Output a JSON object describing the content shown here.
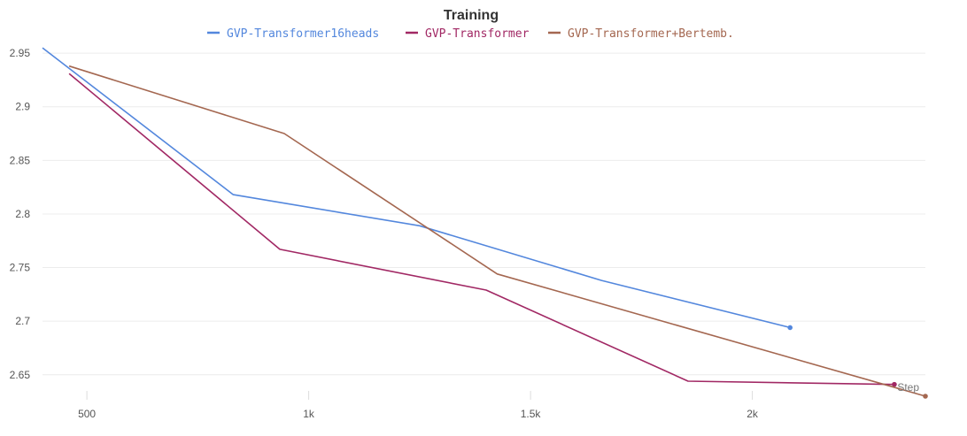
{
  "chart_data": {
    "type": "line",
    "title": "Training",
    "xlabel": "Step",
    "ylabel": "",
    "xlim": [
      400,
      2390
    ],
    "ylim": [
      2.63,
      2.96
    ],
    "grid": true,
    "legend_position": "top-center",
    "x_ticks": [
      {
        "value": 500,
        "label": "500"
      },
      {
        "value": 1000,
        "label": "1k"
      },
      {
        "value": 1500,
        "label": "1.5k"
      },
      {
        "value": 2000,
        "label": "2k"
      }
    ],
    "y_ticks": [
      {
        "value": 2.65,
        "label": "2.65"
      },
      {
        "value": 2.7,
        "label": "2.7"
      },
      {
        "value": 2.75,
        "label": "2.75"
      },
      {
        "value": 2.8,
        "label": "2.8"
      },
      {
        "value": 2.85,
        "label": "2.85"
      },
      {
        "value": 2.9,
        "label": "2.9"
      },
      {
        "value": 2.95,
        "label": "2.95"
      }
    ],
    "series": [
      {
        "name": "GVP-Transformer16heads",
        "color": "#5387dd",
        "x": [
          400,
          830,
          1250,
          1660,
          2085
        ],
        "y": [
          2.955,
          2.818,
          2.789,
          2.738,
          2.694
        ]
      },
      {
        "name": "GVP-Transformer",
        "color": "#a12864",
        "x": [
          460,
          935,
          1400,
          1855,
          2320
        ],
        "y": [
          2.931,
          2.767,
          2.729,
          2.644,
          2.641
        ]
      },
      {
        "name": "GVP-Transformer+Bertemb.",
        "color": "#a46750",
        "x": [
          460,
          945,
          1425,
          2390
        ],
        "y": [
          2.938,
          2.875,
          2.744,
          2.63
        ]
      }
    ]
  }
}
